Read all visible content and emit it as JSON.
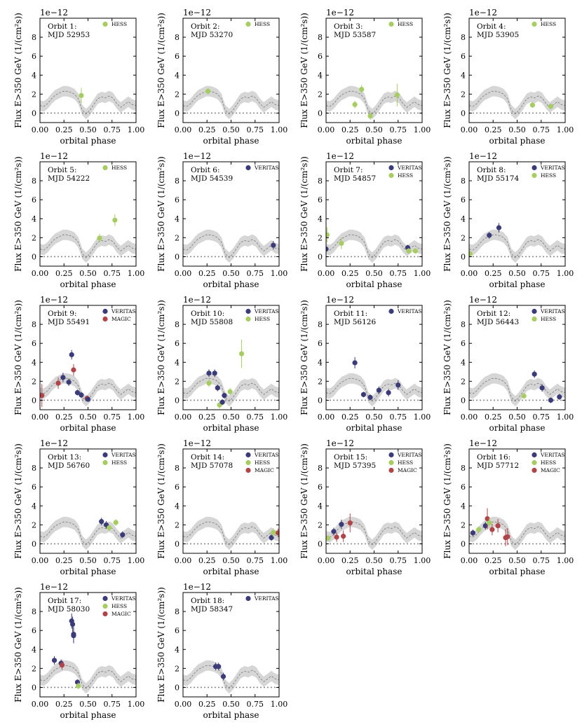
{
  "colors": {
    "VERITAS": "#3b3b7a",
    "HESS": "#a7cc62",
    "MAGIC": "#b04448",
    "band": "#d6d6d6",
    "model": "#7a7a7a",
    "zero": "#8c8c8c"
  },
  "labels": {
    "xlabel": "orbital phase",
    "ylabel": "Flux E>350 GeV (1/(cm²s))",
    "exponent": "1e−12",
    "xticks": [
      "0.00",
      "0.25",
      "0.50",
      "0.75",
      "1.00"
    ],
    "yticks": [
      "0",
      "2",
      "4",
      "6",
      "8"
    ]
  },
  "model": {
    "phase": [
      0,
      0.04,
      0.08,
      0.12,
      0.16,
      0.2,
      0.24,
      0.28,
      0.32,
      0.36,
      0.4,
      0.44,
      0.48,
      0.52,
      0.56,
      0.6,
      0.64,
      0.68,
      0.72,
      0.76,
      0.8,
      0.84,
      0.88,
      0.92,
      0.96,
      1.0
    ],
    "flux": [
      0.8,
      0.7,
      1.0,
      1.5,
      1.9,
      2.1,
      2.3,
      2.3,
      2.2,
      2.0,
      1.5,
      0.3,
      -0.1,
      0.3,
      0.9,
      1.5,
      1.7,
      1.6,
      1.8,
      1.6,
      1.0,
      0.6,
      0.9,
      1.2,
      0.9,
      0.8
    ],
    "band_halfwidth": 0.55
  },
  "chart_data": [
    {
      "type": "scatter",
      "orbit_label": "Orbit 1:",
      "mjd_label": "MJD 52953",
      "legend": [
        "HESS"
      ],
      "ylim": [
        -1,
        10
      ],
      "xlim": [
        0,
        1
      ],
      "points": [
        {
          "exp": "HESS",
          "x": 0.43,
          "y": 1.85,
          "err": 0.8
        }
      ]
    },
    {
      "type": "scatter",
      "orbit_label": "Orbit 2:",
      "mjd_label": "MJD 53270",
      "legend": [
        "HESS"
      ],
      "ylim": [
        -1,
        10
      ],
      "xlim": [
        0,
        1
      ],
      "points": [
        {
          "exp": "HESS",
          "x": 0.26,
          "y": 2.3,
          "err": 0.35
        }
      ]
    },
    {
      "type": "scatter",
      "orbit_label": "Orbit 3:",
      "mjd_label": "MJD 53587",
      "legend": [
        "HESS"
      ],
      "ylim": [
        -1,
        10
      ],
      "xlim": [
        0,
        1
      ],
      "points": [
        {
          "exp": "HESS",
          "x": 0.3,
          "y": 0.9,
          "err": 0.4
        },
        {
          "exp": "HESS",
          "x": 0.37,
          "y": 2.5,
          "err": 0.45
        },
        {
          "exp": "HESS",
          "x": 0.46,
          "y": -0.3,
          "err": 0.4
        },
        {
          "exp": "HESS",
          "x": 0.74,
          "y": 1.9,
          "err": 1.2
        }
      ]
    },
    {
      "type": "scatter",
      "orbit_label": "Orbit 4:",
      "mjd_label": "MJD 53905",
      "legend": [
        "HESS"
      ],
      "ylim": [
        -1,
        10
      ],
      "xlim": [
        0,
        1
      ],
      "points": [
        {
          "exp": "HESS",
          "x": 0.66,
          "y": 0.85,
          "err": 0.3
        },
        {
          "exp": "HESS",
          "x": 0.85,
          "y": 0.7,
          "err": 0.3
        }
      ]
    },
    {
      "type": "scatter",
      "orbit_label": "Orbit 5:",
      "mjd_label": "MJD 54222",
      "legend": [
        "HESS"
      ],
      "ylim": [
        -1,
        10
      ],
      "xlim": [
        0,
        1
      ],
      "points": [
        {
          "exp": "HESS",
          "x": 0.62,
          "y": 1.95,
          "err": 0.45
        },
        {
          "exp": "HESS",
          "x": 0.78,
          "y": 3.85,
          "err": 0.6
        }
      ]
    },
    {
      "type": "scatter",
      "orbit_label": "Orbit 6:",
      "mjd_label": "MJD 54539",
      "legend": [
        "VERITAS"
      ],
      "ylim": [
        -1,
        10
      ],
      "xlim": [
        0,
        1
      ],
      "points": [
        {
          "exp": "VERITAS",
          "x": 0.94,
          "y": 1.2,
          "err": 0.45
        }
      ]
    },
    {
      "type": "scatter",
      "orbit_label": "Orbit 7:",
      "mjd_label": "MJD 54857",
      "legend": [
        "VERITAS",
        "HESS"
      ],
      "ylim": [
        -1,
        10
      ],
      "xlim": [
        0,
        1
      ],
      "points": [
        {
          "exp": "VERITAS",
          "x": 0.0,
          "y": 0.8,
          "err": 0.4
        },
        {
          "exp": "HESS",
          "x": 0.01,
          "y": 2.3,
          "err": 0.8
        },
        {
          "exp": "HESS",
          "x": 0.16,
          "y": 1.4,
          "err": 0.6
        },
        {
          "exp": "VERITAS",
          "x": 0.85,
          "y": 0.95,
          "err": 0.3
        },
        {
          "exp": "HESS",
          "x": 0.86,
          "y": 0.6,
          "err": 0.3
        },
        {
          "exp": "HESS",
          "x": 0.93,
          "y": 0.6,
          "err": 0.3
        }
      ]
    },
    {
      "type": "scatter",
      "orbit_label": "Orbit 8:",
      "mjd_label": "MJD 55174",
      "legend": [
        "VERITAS",
        "HESS"
      ],
      "ylim": [
        -1,
        10
      ],
      "xlim": [
        0,
        1
      ],
      "points": [
        {
          "exp": "HESS",
          "x": 0.01,
          "y": 0.3,
          "err": 0.3
        },
        {
          "exp": "VERITAS",
          "x": 0.21,
          "y": 2.25,
          "err": 0.35
        },
        {
          "exp": "VERITAS",
          "x": 0.31,
          "y": 3.05,
          "err": 0.5
        }
      ]
    },
    {
      "type": "scatter",
      "orbit_label": "Orbit 9:",
      "mjd_label": "MJD 55491",
      "legend": [
        "VERITAS",
        "MAGIC"
      ],
      "ylim": [
        -1,
        10
      ],
      "xlim": [
        0,
        1
      ],
      "points": [
        {
          "exp": "MAGIC",
          "x": 0.02,
          "y": 0.5,
          "err": 1.2
        },
        {
          "exp": "MAGIC",
          "x": 0.19,
          "y": 1.8,
          "err": 0.6
        },
        {
          "exp": "VERITAS",
          "x": 0.24,
          "y": 2.4,
          "err": 0.5
        },
        {
          "exp": "VERITAS",
          "x": 0.3,
          "y": 1.9,
          "err": 0.4
        },
        {
          "exp": "VERITAS",
          "x": 0.33,
          "y": 4.8,
          "err": 0.5
        },
        {
          "exp": "MAGIC",
          "x": 0.35,
          "y": 3.2,
          "err": 0.6
        },
        {
          "exp": "VERITAS",
          "x": 0.39,
          "y": 0.8,
          "err": 0.3
        },
        {
          "exp": "VERITAS",
          "x": 0.43,
          "y": 0.55,
          "err": 0.3
        },
        {
          "exp": "MAGIC",
          "x": 0.49,
          "y": 0.2,
          "err": 0.3
        },
        {
          "exp": "VERITAS",
          "x": 0.5,
          "y": 0.1,
          "err": 0.25
        }
      ]
    },
    {
      "type": "scatter",
      "orbit_label": "Orbit 10:",
      "mjd_label": "MJD 55808",
      "legend": [
        "VERITAS",
        "HESS"
      ],
      "ylim": [
        -1,
        10
      ],
      "xlim": [
        0,
        1
      ],
      "points": [
        {
          "exp": "VERITAS",
          "x": 0.27,
          "y": 2.85,
          "err": 0.4
        },
        {
          "exp": "HESS",
          "x": 0.27,
          "y": 1.8,
          "err": 0.4
        },
        {
          "exp": "VERITAS",
          "x": 0.33,
          "y": 2.85,
          "err": 0.4
        },
        {
          "exp": "VERITAS",
          "x": 0.36,
          "y": 1.3,
          "err": 0.35
        },
        {
          "exp": "HESS",
          "x": 0.38,
          "y": -0.5,
          "err": 0.4
        },
        {
          "exp": "VERITAS",
          "x": 0.41,
          "y": -0.2,
          "err": 0.3
        },
        {
          "exp": "VERITAS",
          "x": 0.43,
          "y": 0.5,
          "err": 0.3
        },
        {
          "exp": "HESS",
          "x": 0.49,
          "y": 0.9,
          "err": 0.4
        },
        {
          "exp": "HESS",
          "x": 0.61,
          "y": 4.9,
          "err": 1.5
        }
      ]
    },
    {
      "type": "scatter",
      "orbit_label": "Orbit 11:",
      "mjd_label": "MJD 56126",
      "legend": [
        "VERITAS"
      ],
      "ylim": [
        -1,
        10
      ],
      "xlim": [
        0,
        1
      ],
      "points": [
        {
          "exp": "VERITAS",
          "x": 0.3,
          "y": 3.95,
          "err": 0.6
        },
        {
          "exp": "VERITAS",
          "x": 0.39,
          "y": 0.6,
          "err": 0.3
        },
        {
          "exp": "VERITAS",
          "x": 0.46,
          "y": 0.3,
          "err": 0.3
        },
        {
          "exp": "VERITAS",
          "x": 0.55,
          "y": 1.05,
          "err": 0.4
        },
        {
          "exp": "VERITAS",
          "x": 0.65,
          "y": 0.8,
          "err": 0.4
        },
        {
          "exp": "VERITAS",
          "x": 0.75,
          "y": 1.6,
          "err": 0.5
        }
      ]
    },
    {
      "type": "scatter",
      "orbit_label": "Orbit 12:",
      "mjd_label": "MJD 56443",
      "legend": [
        "VERITAS",
        "HESS"
      ],
      "ylim": [
        -1,
        10
      ],
      "xlim": [
        0,
        1
      ],
      "points": [
        {
          "exp": "HESS",
          "x": 0.57,
          "y": 0.45,
          "err": 0.3
        },
        {
          "exp": "VERITAS",
          "x": 0.68,
          "y": 2.75,
          "err": 0.4
        },
        {
          "exp": "VERITAS",
          "x": 0.76,
          "y": 1.3,
          "err": 0.4
        },
        {
          "exp": "VERITAS",
          "x": 0.85,
          "y": 0.0,
          "err": 0.3
        },
        {
          "exp": "VERITAS",
          "x": 0.94,
          "y": 0.35,
          "err": 0.3
        }
      ]
    },
    {
      "type": "scatter",
      "orbit_label": "Orbit 13:",
      "mjd_label": "MJD 56760",
      "legend": [
        "VERITAS",
        "HESS"
      ],
      "ylim": [
        -1,
        10
      ],
      "xlim": [
        0,
        1
      ],
      "points": [
        {
          "exp": "VERITAS",
          "x": 0.64,
          "y": 2.35,
          "err": 0.4
        },
        {
          "exp": "VERITAS",
          "x": 0.69,
          "y": 2.0,
          "err": 0.4
        },
        {
          "exp": "HESS",
          "x": 0.72,
          "y": 1.7,
          "err": 0.35
        },
        {
          "exp": "HESS",
          "x": 0.79,
          "y": 2.25,
          "err": 0.35
        },
        {
          "exp": "VERITAS",
          "x": 0.86,
          "y": 0.95,
          "err": 0.35
        }
      ]
    },
    {
      "type": "scatter",
      "orbit_label": "Orbit 14:",
      "mjd_label": "MJD 57078",
      "legend": [
        "VERITAS",
        "HESS",
        "MAGIC"
      ],
      "ylim": [
        -1,
        10
      ],
      "xlim": [
        0,
        1
      ],
      "points": [
        {
          "exp": "VERITAS",
          "x": 0.92,
          "y": 0.65,
          "err": 0.35
        },
        {
          "exp": "HESS",
          "x": 0.94,
          "y": 1.2,
          "err": 0.45
        },
        {
          "exp": "MAGIC",
          "x": 0.99,
          "y": 1.15,
          "err": 0.45
        }
      ]
    },
    {
      "type": "scatter",
      "orbit_label": "Orbit 15:",
      "mjd_label": "MJD 57395",
      "legend": [
        "VERITAS",
        "HESS",
        "MAGIC"
      ],
      "ylim": [
        -1,
        10
      ],
      "xlim": [
        0,
        1
      ],
      "points": [
        {
          "exp": "HESS",
          "x": 0.02,
          "y": 0.6,
          "err": 0.3
        },
        {
          "exp": "VERITAS",
          "x": 0.08,
          "y": 1.3,
          "err": 0.4
        },
        {
          "exp": "MAGIC",
          "x": 0.11,
          "y": 0.7,
          "err": 0.5
        },
        {
          "exp": "VERITAS",
          "x": 0.16,
          "y": 2.05,
          "err": 0.5
        },
        {
          "exp": "MAGIC",
          "x": 0.18,
          "y": 0.8,
          "err": 0.6
        },
        {
          "exp": "MAGIC",
          "x": 0.25,
          "y": 2.2,
          "err": 1.0
        }
      ]
    },
    {
      "type": "scatter",
      "orbit_label": "Orbit 16:",
      "mjd_label": "MJD 57712",
      "legend": [
        "VERITAS",
        "HESS",
        "MAGIC"
      ],
      "ylim": [
        -1,
        10
      ],
      "xlim": [
        0,
        1
      ],
      "points": [
        {
          "exp": "VERITAS",
          "x": 0.04,
          "y": 1.15,
          "err": 0.35
        },
        {
          "exp": "HESS",
          "x": 0.1,
          "y": 1.5,
          "err": 0.35
        },
        {
          "exp": "VERITAS",
          "x": 0.17,
          "y": 1.9,
          "err": 0.4
        },
        {
          "exp": "MAGIC",
          "x": 0.19,
          "y": 2.65,
          "err": 1.1
        },
        {
          "exp": "HESS",
          "x": 0.21,
          "y": 2.2,
          "err": 0.5
        },
        {
          "exp": "MAGIC",
          "x": 0.24,
          "y": 1.5,
          "err": 0.6
        },
        {
          "exp": "MAGIC",
          "x": 0.3,
          "y": 1.9,
          "err": 0.7
        },
        {
          "exp": "MAGIC",
          "x": 0.38,
          "y": 0.65,
          "err": 0.9
        },
        {
          "exp": "MAGIC",
          "x": 0.4,
          "y": 0.75,
          "err": 0.9
        }
      ]
    },
    {
      "type": "scatter",
      "orbit_label": "Orbit 17:",
      "mjd_label": "MJD 58030",
      "legend": [
        "VERITAS",
        "HESS",
        "MAGIC"
      ],
      "ylim": [
        -1,
        10
      ],
      "xlim": [
        0,
        1
      ],
      "points": [
        {
          "exp": "VERITAS",
          "x": 0.15,
          "y": 2.85,
          "err": 0.45
        },
        {
          "exp": "VERITAS",
          "x": 0.22,
          "y": 2.55,
          "err": 0.4
        },
        {
          "exp": "MAGIC",
          "x": 0.23,
          "y": 2.35,
          "err": 0.5
        },
        {
          "exp": "VERITAS",
          "x": 0.33,
          "y": 7.0,
          "err": 0.8
        },
        {
          "exp": "VERITAS",
          "x": 0.34,
          "y": 6.65,
          "err": 0.8
        },
        {
          "exp": "VERITAS",
          "x": 0.35,
          "y": 5.6,
          "err": 0.8
        },
        {
          "exp": "VERITAS",
          "x": 0.35,
          "y": 5.45,
          "err": 0.8
        },
        {
          "exp": "VERITAS",
          "x": 0.39,
          "y": 0.55,
          "err": 0.3
        },
        {
          "exp": "HESS",
          "x": 0.4,
          "y": 0.15,
          "err": 0.35
        }
      ]
    },
    {
      "type": "scatter",
      "orbit_label": "Orbit 18:",
      "mjd_label": "MJD 58347",
      "legend": [
        "VERITAS"
      ],
      "ylim": [
        -1,
        10
      ],
      "xlim": [
        0,
        1
      ],
      "points": [
        {
          "exp": "VERITAS",
          "x": 0.34,
          "y": 2.2,
          "err": 0.4
        },
        {
          "exp": "VERITAS",
          "x": 0.37,
          "y": 2.2,
          "err": 0.4
        },
        {
          "exp": "VERITAS",
          "x": 0.42,
          "y": 1.15,
          "err": 0.4
        }
      ]
    }
  ]
}
